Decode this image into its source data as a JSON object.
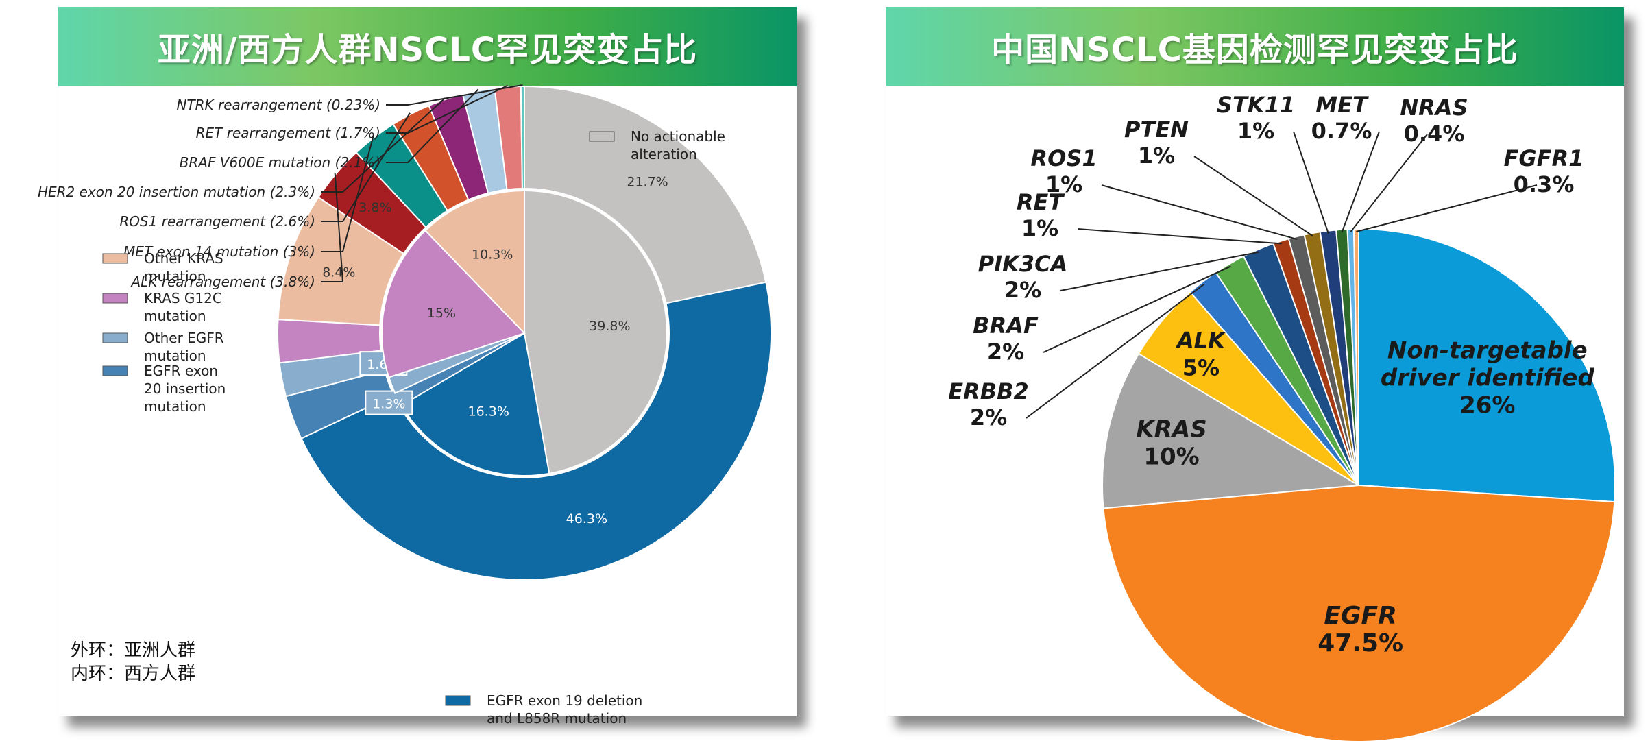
{
  "left_panel": {
    "title": "亚洲/西方人群NSCLC罕见突变占比",
    "footnote_outer": "外环：亚洲人群",
    "footnote_inner": "内环：西方人群"
  },
  "right_panel": {
    "title": "中国NSCLC基因检测罕见突变占比"
  },
  "chart_data": [
    {
      "type": "pie",
      "variant": "nested-donut",
      "title": "亚洲/西方人群NSCLC罕见突变占比",
      "outer_ring": {
        "name": "外环：亚洲人群",
        "slices": [
          {
            "label": "No actionable alteration",
            "value": 21.7,
            "color": "#c4c2c1"
          },
          {
            "label": "EGFR exon 19 deletion and L858R mutation",
            "value": 46.3,
            "color": "#0f69a3"
          },
          {
            "label": "EGFR exon 20 insertion mutation",
            "value": 2.9,
            "color": "#4682b4"
          },
          {
            "label": "Other EGFR mutation",
            "value": 2.2,
            "color": "#89aecd"
          },
          {
            "label": "KRAS G12C mutation",
            "value": 2.8,
            "color": "#c384c1"
          },
          {
            "label": "Other KRAS mutation",
            "value": 8.4,
            "color": "#ebbca0"
          },
          {
            "label": "ALK rearrangement",
            "value": 3.8,
            "color": "#a61e22"
          },
          {
            "label": "MET exon 14 mutation",
            "value": 3.0,
            "color": "#0a9088"
          },
          {
            "label": "ROS1 rearrangement",
            "value": 2.6,
            "color": "#d2522b"
          },
          {
            "label": "HER2 exon 20 insertion mutation",
            "value": 2.3,
            "color": "#8e2678"
          },
          {
            "label": "BRAF V600E mutation",
            "value": 2.1,
            "color": "#a9c8e2"
          },
          {
            "label": "RET rearrangement",
            "value": 1.7,
            "color": "#e27a7a"
          },
          {
            "label": "NTRK rearrangement",
            "value": 0.23,
            "color": "#5fc6c0"
          }
        ]
      },
      "inner_ring": {
        "name": "内环：西方人群",
        "slices": [
          {
            "label": "No actionable alteration",
            "value": 39.8,
            "color": "#c4c2c1"
          },
          {
            "label": "EGFR exon 19 deletion and L858R mutation",
            "value": 16.3,
            "color": "#0f69a3"
          },
          {
            "label": "EGFR exon 20 insertion mutation",
            "value": 1.3,
            "color": "#4682b4"
          },
          {
            "label": "Other EGFR mutation",
            "value": 1.6,
            "color": "#89aecd"
          },
          {
            "label": "KRAS G12C mutation",
            "value": 15,
            "color": "#c384c1"
          },
          {
            "label": "Other KRAS mutation",
            "value": 10.3,
            "color": "#ebbca0"
          }
        ]
      },
      "callouts": [
        "NTRK rearrangement (0.23%)",
        "RET rearrangement (1.7%)",
        "BRAF V600E mutation (2.1%)",
        "HER2 exon 20 insertion mutation (2.3%)",
        "ROS1 rearrangement (2.6%)",
        "MET exon 14 mutation (3%)",
        "ALK rearrangement (3.8%)"
      ],
      "legend": [
        {
          "label": "No actionable alteration",
          "color": "#c4c2c1"
        },
        {
          "label": "Other KRAS mutation",
          "color": "#ebbca0"
        },
        {
          "label": "KRAS G12C mutation",
          "color": "#c384c1"
        },
        {
          "label": "Other EGFR mutation",
          "color": "#89aecd"
        },
        {
          "label": "EGFR exon 20 insertion mutation",
          "color": "#4682b4"
        },
        {
          "label": "EGFR exon 19 deletion and L858R mutation",
          "color": "#0f69a3"
        }
      ]
    },
    {
      "type": "pie",
      "title": "中国NSCLC基因检测罕见突变占比",
      "slices": [
        {
          "label": "Non-targetable driver identified",
          "value": 26,
          "display": "26%",
          "color": "#0b9bd8"
        },
        {
          "label": "EGFR",
          "value": 47.5,
          "display": "47.5%",
          "color": "#f5821f"
        },
        {
          "label": "KRAS",
          "value": 10,
          "display": "10%",
          "color": "#a5a5a5"
        },
        {
          "label": "ALK",
          "value": 5,
          "display": "5%",
          "color": "#fdc010"
        },
        {
          "label": "ERBB2",
          "value": 2,
          "display": "2%",
          "color": "#2e75c8"
        },
        {
          "label": "BRAF",
          "value": 2,
          "display": "2%",
          "color": "#56a945"
        },
        {
          "label": "PIK3CA",
          "value": 2,
          "display": "2%",
          "color": "#1d4f86"
        },
        {
          "label": "RET",
          "value": 1,
          "display": "1%",
          "color": "#a63a12"
        },
        {
          "label": "ROS1",
          "value": 1,
          "display": "1%",
          "color": "#5c5c5c"
        },
        {
          "label": "PTEN",
          "value": 1,
          "display": "1%",
          "color": "#946e15"
        },
        {
          "label": "STK11",
          "value": 1,
          "display": "1%",
          "color": "#1f3e7a"
        },
        {
          "label": "MET",
          "value": 0.7,
          "display": "0.7%",
          "color": "#2e6a2a"
        },
        {
          "label": "NRAS",
          "value": 0.4,
          "display": "0.4%",
          "color": "#62b3e6"
        },
        {
          "label": "FGFR1",
          "value": 0.3,
          "display": "0.3%",
          "color": "#f8a96a"
        }
      ]
    }
  ]
}
